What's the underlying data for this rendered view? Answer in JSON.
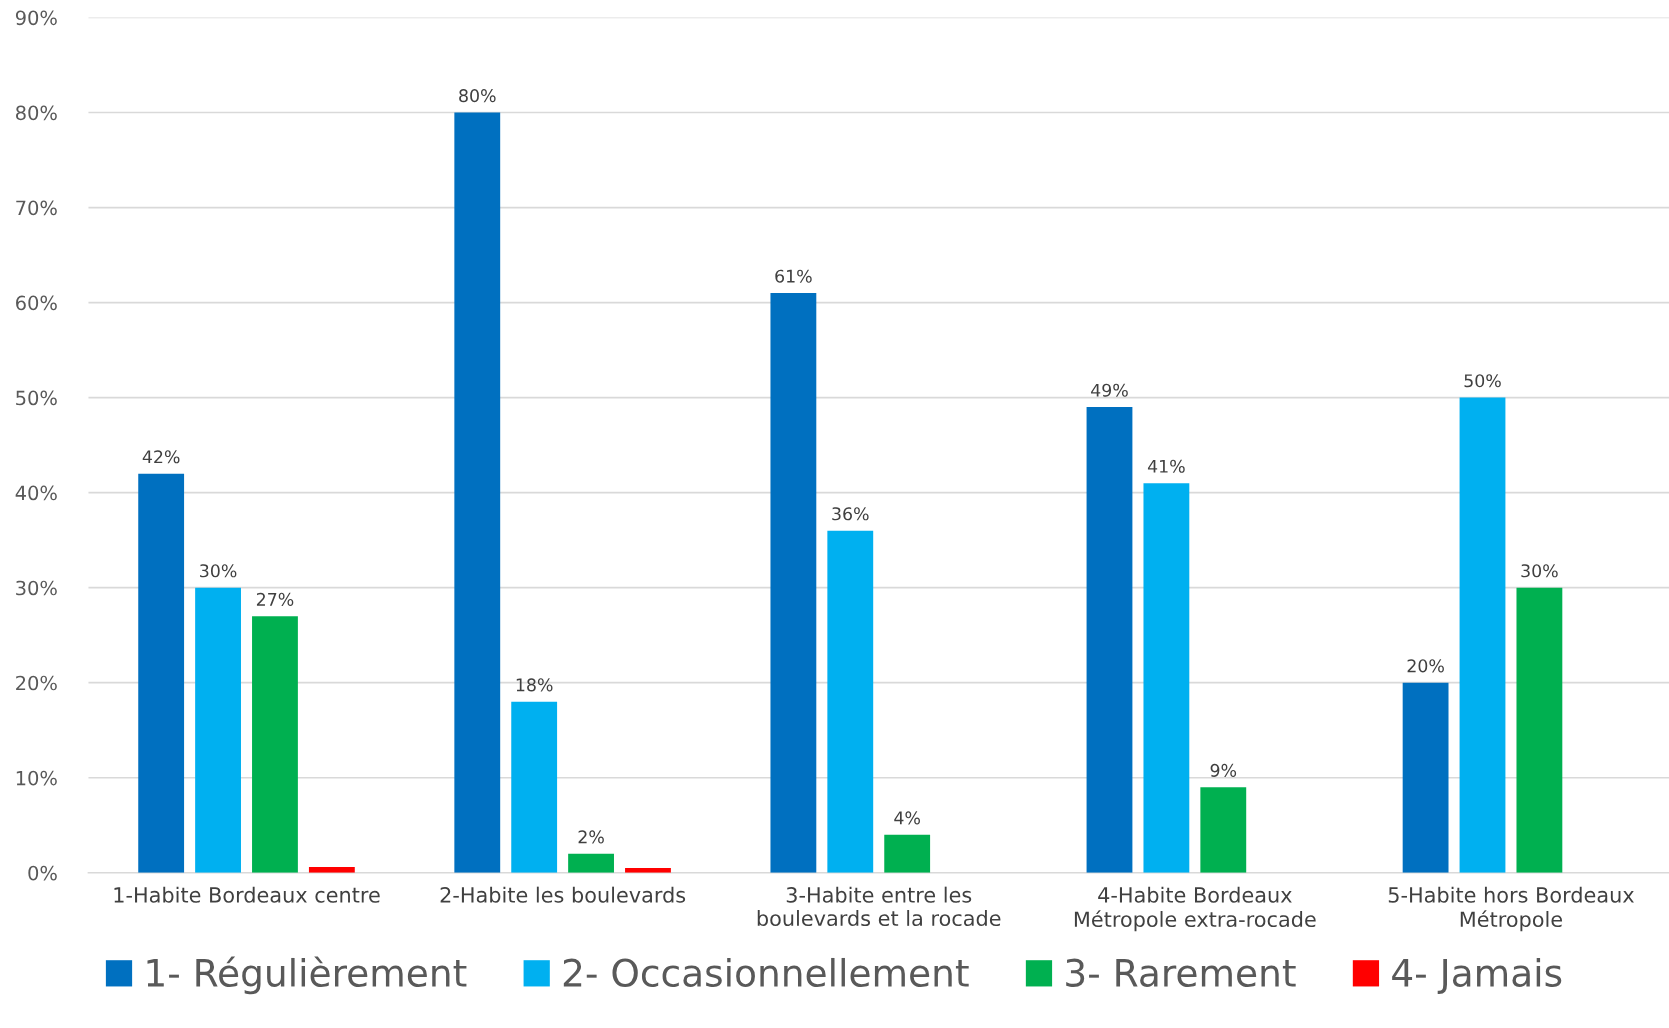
{
  "chart_data": {
    "type": "bar",
    "categories": [
      "1-Habite Bordeaux centre",
      "2-Habite les boulevards",
      "3-Habite entre les\nboulevards et la rocade",
      "4-Habite Bordeaux\nMétropole extra-rocade",
      "5-Habite hors Bordeaux\nMétropole"
    ],
    "series": [
      {
        "name": "1- Régulièrement",
        "color": "#0070c0",
        "values": [
          42,
          80,
          61,
          49,
          20
        ],
        "value_labels": [
          "42%",
          "80%",
          "61%",
          "49%",
          "20%"
        ]
      },
      {
        "name": "2- Occasionnellement",
        "color": "#00b0f0",
        "values": [
          30,
          18,
          36,
          41,
          50
        ],
        "value_labels": [
          "30%",
          "18%",
          "36%",
          "41%",
          "50%"
        ]
      },
      {
        "name": "3- Rarement",
        "color": "#00b050",
        "values": [
          27,
          2,
          4,
          9,
          30
        ],
        "value_labels": [
          "27%",
          "2%",
          "4%",
          "9%",
          "30%"
        ]
      },
      {
        "name": "4- Jamais",
        "color": "#ff0000",
        "values": [
          0.6,
          0.5,
          null,
          null,
          null
        ],
        "value_labels": [
          null,
          null,
          null,
          null,
          null
        ]
      }
    ],
    "ylim": [
      0,
      90
    ],
    "yticks": [
      {
        "value": 0,
        "label": "0%"
      },
      {
        "value": 10,
        "label": "10%"
      },
      {
        "value": 20,
        "label": "20%"
      },
      {
        "value": 30,
        "label": "30%"
      },
      {
        "value": 40,
        "label": "40%"
      },
      {
        "value": 50,
        "label": "50%"
      },
      {
        "value": 60,
        "label": "60%"
      },
      {
        "value": 70,
        "label": "70%"
      },
      {
        "value": 80,
        "label": "80%"
      },
      {
        "value": 90,
        "label": "90%"
      }
    ],
    "grid": "y",
    "legend": "bottom"
  }
}
